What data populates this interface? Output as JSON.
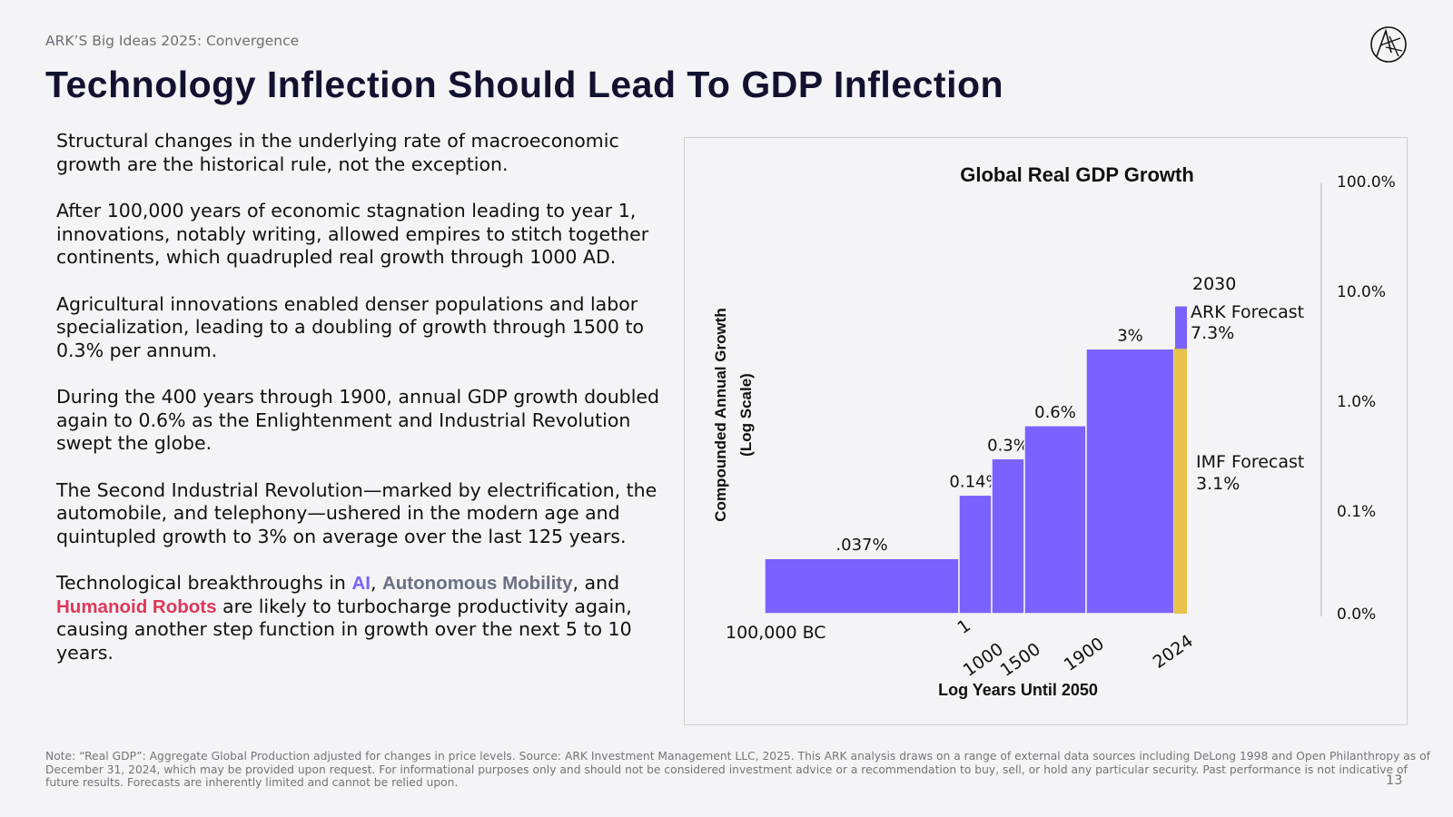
{
  "header": {
    "subtitle": "ARK’S Big Ideas 2025: Convergence",
    "title": "Technology Inflection Should Lead To GDP Inflection"
  },
  "body": {
    "p1": "Structural changes in the underlying rate of macroeconomic growth are the historical rule, not the exception.",
    "p2": "After 100,000 years of economic stagnation leading to year 1, innovations, notably writing, allowed empires to stitch together continents, which quadrupled real growth through 1000 AD.",
    "p3": "Agricultural innovations enabled denser populations and labor specialization, leading to a doubling of growth through 1500 to 0.3% per annum.",
    "p4": "During the 400 years through 1900, annual GDP growth doubled again to 0.6% as the Enlightenment and Industrial Revolution swept the globe.",
    "p5": "The Second Industrial Revolution—marked by electrification, the automobile, and telephony—ushered in the modern age and quintupled growth to 3% on average over the last 125 years.",
    "p6_pre": "Technological breakthroughs in ",
    "p6_ai": "AI",
    "p6_comma": ", ",
    "p6_am": "Autonomous Mobility",
    "p6_mid": ", and ",
    "p6_hr": "Humanoid Robots",
    "p6_post": " are likely to turbocharge productivity again, causing another step function in growth over the next 5 to 10 years."
  },
  "chart_data": {
    "type": "bar",
    "title": "Global Real GDP Growth",
    "ylabel_line1": "Compounded Annual Growth",
    "ylabel_line2": "(Log Scale)",
    "xlabel": "Log Years Until 2050",
    "y_scale": "log",
    "y_ticks": [
      "100.0%",
      "10.0%",
      "1.0%",
      "0.1%",
      "0.0%"
    ],
    "x_tick_labels": [
      "100,000 BC",
      "1",
      "1000",
      "1500",
      "1900",
      "2024"
    ],
    "bars": [
      {
        "from": "100,000 BC",
        "to": "1",
        "value_pct": 0.037,
        "label": ".037%"
      },
      {
        "from": "1",
        "to": "1000",
        "value_pct": 0.14,
        "label": "0.14%"
      },
      {
        "from": "1000",
        "to": "1500",
        "value_pct": 0.3,
        "label": "0.3%"
      },
      {
        "from": "1500",
        "to": "1900",
        "value_pct": 0.6,
        "label": "0.6%"
      },
      {
        "from": "1900",
        "to": "2024",
        "value_pct": 3,
        "label": "3%"
      }
    ],
    "forecasts": [
      {
        "name": "IMF Forecast",
        "value_pct": 3.1,
        "label": "3.1%",
        "color": "#e8c24a"
      },
      {
        "name": "ARK Forecast",
        "value_pct": 7.3,
        "label": "7.3%",
        "year": "2030",
        "color": "#7b61ff"
      }
    ],
    "bar_color": "#7b61ff"
  },
  "footnote": "Note: “Real GDP”: Aggregate Global Production adjusted for changes in price levels. Source: ARK Investment Management LLC, 2025. This ARK analysis draws on a range of external data sources including DeLong 1998 and Open Philanthropy as of December 31, 2024, which may be provided upon request. For informational purposes only and should not be considered investment advice or a recommendation to buy, sell, or hold any particular security. Past performance is not indicative of future results. Forecasts are inherently limited and cannot be relied upon.",
  "page_number": "13",
  "colors": {
    "title": "#121230",
    "accent_purple": "#7b61ff",
    "accent_yellow": "#e8c24a",
    "accent_red": "#e0365a",
    "accent_gray": "#6b7082"
  }
}
